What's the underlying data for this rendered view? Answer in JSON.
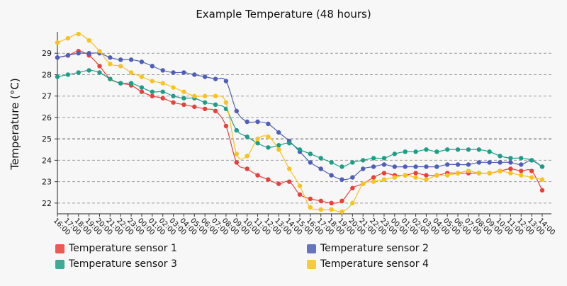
{
  "chart_data": {
    "type": "line",
    "title": "Example Temperature (48 hours)",
    "xlabel": "",
    "ylabel": "Temperature (°C)",
    "ylim": [
      21.5,
      30.0
    ],
    "yticks": [
      22,
      23,
      24,
      25,
      26,
      27,
      28,
      29
    ],
    "grid": true,
    "legend_position": "bottom",
    "x": [
      "16:00",
      "17:00",
      "18:00",
      "19:00",
      "20:00",
      "21:00",
      "22:00",
      "23:00",
      "00:00",
      "01:00",
      "02:00",
      "03:00",
      "04:00",
      "05:00",
      "06:00",
      "07:00",
      "08:00",
      "09:00",
      "10:00",
      "11:00",
      "12:00",
      "13:00",
      "14:00",
      "15:00",
      "16:00",
      "17:00",
      "18:00",
      "19:00",
      "20:00",
      "21:00",
      "22:00",
      "23:00",
      "00:00",
      "01:00",
      "02:00",
      "03:00",
      "04:00",
      "05:00",
      "06:00",
      "07:00",
      "08:00",
      "09:00",
      "10:00",
      "11:00",
      "12:00",
      "13:00",
      "14:00"
    ],
    "series": [
      {
        "name": "Temperature sensor 1",
        "color": "#e8403a",
        "values": [
          28.8,
          28.9,
          29.1,
          28.9,
          28.4,
          27.8,
          27.6,
          27.5,
          27.2,
          27.0,
          26.9,
          26.7,
          26.6,
          26.5,
          26.4,
          26.3,
          25.6,
          23.9,
          23.6,
          23.3,
          23.1,
          22.9,
          23.0,
          22.4,
          22.2,
          22.1,
          22.0,
          22.1,
          22.7,
          22.9,
          23.2,
          23.4,
          23.3,
          23.3,
          23.4,
          23.3,
          23.3,
          23.4,
          23.4,
          23.4,
          23.4,
          23.4,
          23.5,
          23.6,
          23.5,
          23.5,
          22.6
        ]
      },
      {
        "name": "Temperature sensor 2",
        "color": "#4f5fb5",
        "values": [
          28.8,
          28.9,
          29.0,
          29.0,
          29.0,
          28.8,
          28.7,
          28.7,
          28.6,
          28.4,
          28.2,
          28.1,
          28.1,
          28.0,
          27.9,
          27.8,
          27.7,
          26.3,
          25.8,
          25.8,
          25.7,
          25.3,
          24.9,
          24.4,
          23.9,
          23.6,
          23.3,
          23.1,
          23.2,
          23.6,
          23.7,
          23.8,
          23.7,
          23.7,
          23.7,
          23.7,
          23.7,
          23.8,
          23.8,
          23.8,
          23.9,
          23.9,
          23.9,
          23.9,
          23.8,
          24.0,
          23.7
        ]
      },
      {
        "name": "Temperature sensor 3",
        "color": "#1e9e86",
        "values": [
          27.9,
          28.0,
          28.1,
          28.2,
          28.1,
          27.8,
          27.6,
          27.6,
          27.4,
          27.2,
          27.2,
          27.0,
          26.9,
          26.9,
          26.7,
          26.6,
          26.4,
          25.4,
          25.1,
          24.8,
          24.6,
          24.7,
          24.8,
          24.5,
          24.3,
          24.1,
          23.9,
          23.7,
          23.9,
          24.0,
          24.1,
          24.1,
          24.3,
          24.4,
          24.4,
          24.5,
          24.4,
          24.5,
          24.5,
          24.5,
          24.5,
          24.4,
          24.2,
          24.1,
          24.1,
          24.0,
          23.7
        ]
      },
      {
        "name": "Temperature sensor 4",
        "color": "#f9c31f",
        "values": [
          29.5,
          29.7,
          29.9,
          29.6,
          29.1,
          28.5,
          28.4,
          28.1,
          27.9,
          27.7,
          27.6,
          27.4,
          27.2,
          27.0,
          27.0,
          27.0,
          26.7,
          24.3,
          24.2,
          25.0,
          25.1,
          24.5,
          23.6,
          22.8,
          21.8,
          21.7,
          21.7,
          21.6,
          22.0,
          22.9,
          23.0,
          23.1,
          23.2,
          23.3,
          23.2,
          23.1,
          23.3,
          23.3,
          23.4,
          23.5,
          23.4,
          23.4,
          23.5,
          23.4,
          23.3,
          23.2,
          23.1
        ]
      }
    ]
  }
}
